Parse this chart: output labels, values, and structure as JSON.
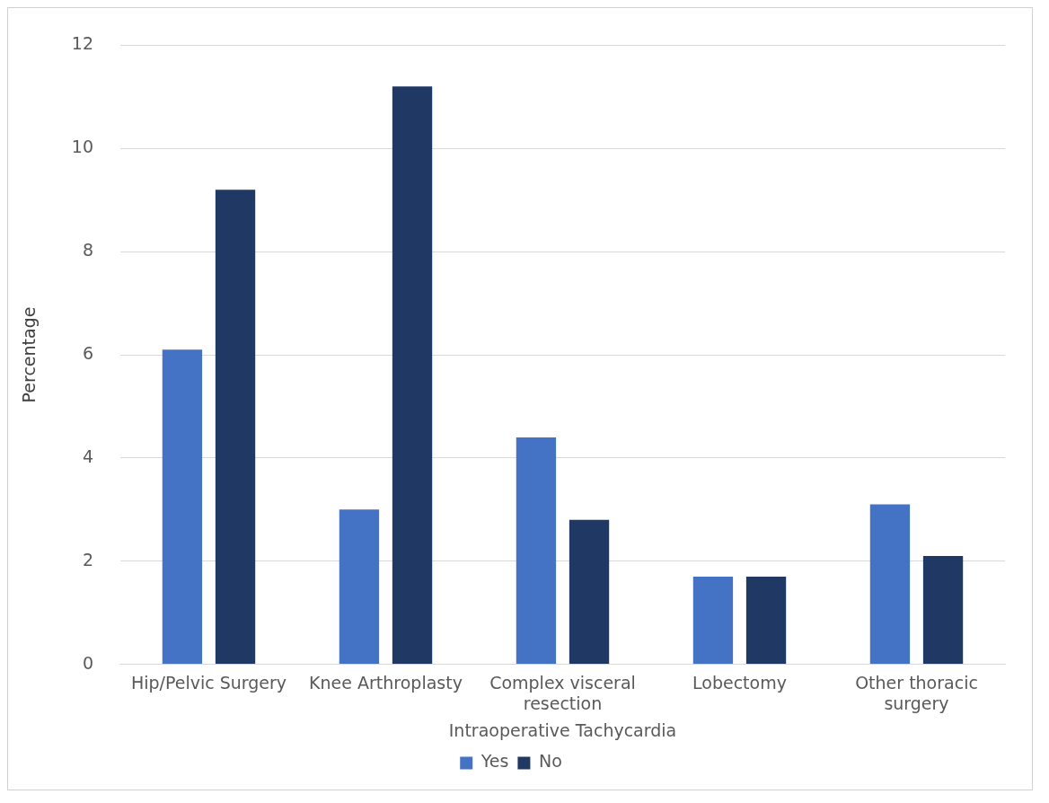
{
  "chart_data": {
    "type": "bar",
    "xlabel": "Intraoperative Tachycardia",
    "ylabel": "Percentage",
    "categories": [
      "Hip/Pelvic Surgery",
      "Knee Arthroplasty",
      "Complex visceral resection",
      "Lobectomy",
      "Other thoracic surgery"
    ],
    "series": [
      {
        "name": "Yes",
        "color": "#4472c4",
        "values": [
          6.1,
          3.0,
          4.4,
          1.7,
          3.1
        ]
      },
      {
        "name": "No",
        "color": "#1f3864",
        "values": [
          9.2,
          11.2,
          2.8,
          1.7,
          2.1
        ]
      }
    ],
    "ylim": [
      0,
      12
    ],
    "yticks": [
      0,
      2,
      4,
      6,
      8,
      10,
      12
    ],
    "grid": "y",
    "legend": "bottom"
  }
}
